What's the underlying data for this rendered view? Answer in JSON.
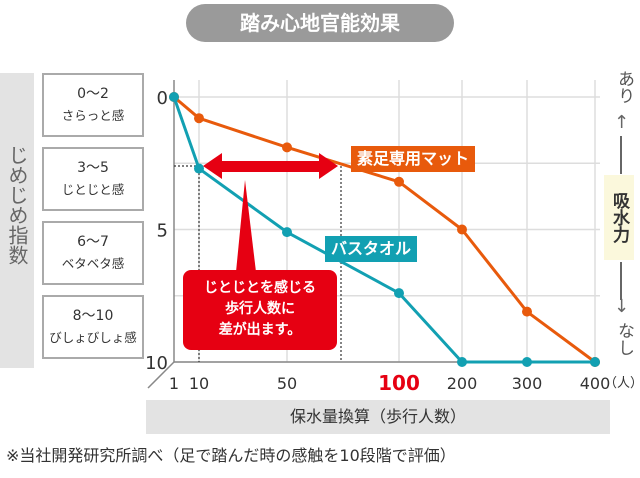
{
  "title": "踏み心地官能効果",
  "y_axis_title": "じめじめ指数",
  "bands": [
    {
      "range": "0〜2",
      "label": "さらっと感"
    },
    {
      "range": "3〜5",
      "label": "じとじと感"
    },
    {
      "range": "6〜7",
      "label": "ベタベタ感"
    },
    {
      "range": "8〜10",
      "label": "びしょびしょ感"
    }
  ],
  "right_axis": {
    "top": "あり",
    "bottom": "なし",
    "label": "吸水力",
    "arrow_up": "↑",
    "arrow_down": "↓"
  },
  "callout": [
    "じとじとを感じる",
    "歩行人数に",
    "差が出ます。"
  ],
  "x_axis_title": "保水量換算（歩行人数）",
  "x_unit": "（人）",
  "footnote": "※当社開発研究所調べ（足で踏んだ時の感触を10段階で評価）",
  "chart_data": {
    "type": "line",
    "x": [
      1,
      10,
      50,
      100,
      200,
      300,
      400
    ],
    "x_tick_labels": [
      "1",
      "10",
      "50",
      "100",
      "200",
      "300",
      "400"
    ],
    "y_ticks": [
      "0",
      "5",
      "10"
    ],
    "ylim": [
      0,
      10
    ],
    "y_inverted": true,
    "series": [
      {
        "name": "素足専用マット",
        "color": "#e85a0c",
        "values": [
          0,
          0.8,
          1.9,
          3.2,
          5,
          8.1,
          10
        ]
      },
      {
        "name": "バスタオル",
        "color": "#12a0b2",
        "values": [
          0,
          2.7,
          5.1,
          7.4,
          10,
          10,
          10
        ]
      }
    ],
    "highlight_x": "100",
    "highlight_color": "#e60012"
  }
}
